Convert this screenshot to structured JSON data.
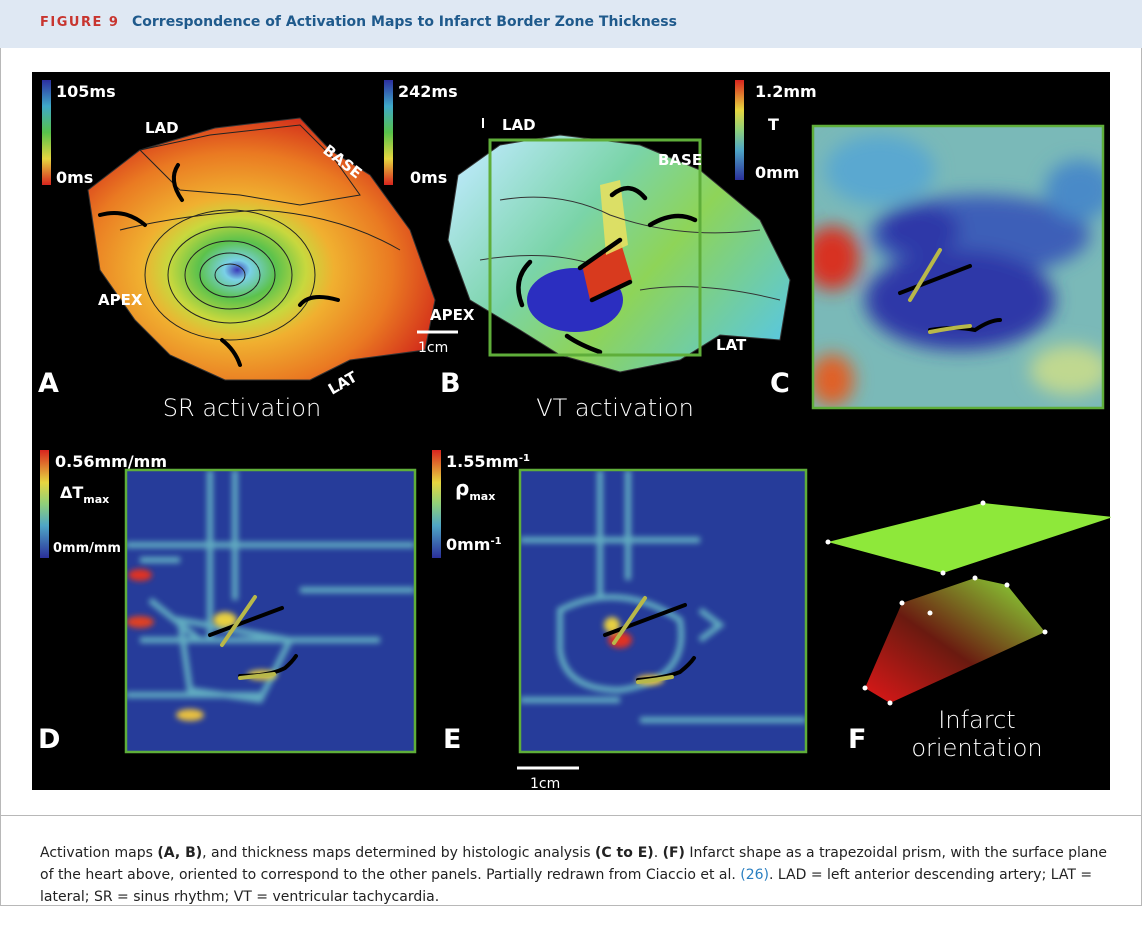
{
  "header": {
    "label": "FIGURE 9",
    "title": "Correspondence of Activation Maps to Infarct Border Zone Thickness"
  },
  "panels": {
    "a": {
      "scale_max": "105ms",
      "scale_min": "0ms",
      "lad": "LAD",
      "base": "BASE",
      "apex": "APEX",
      "lat": "LAT",
      "letter": "A",
      "caption": "SR activation"
    },
    "b": {
      "scale_max": "242ms",
      "scale_min": "0ms",
      "lad": "LAD",
      "base": "BASE",
      "apex": "APEX",
      "lat": "LAT",
      "scale_bar": "1cm",
      "letter": "B",
      "caption": "VT activation"
    },
    "c": {
      "scale_max": "1.2mm",
      "symbol": "T",
      "scale_min": "0mm",
      "letter": "C"
    },
    "d": {
      "scale_max": "0.56mm/mm",
      "symbol": "ΔT",
      "symbol_sub": "max",
      "scale_min": "0mm/mm",
      "letter": "D"
    },
    "e": {
      "scale_max": "1.55mm",
      "scale_max_sup": "-1",
      "symbol": "ρ",
      "symbol_sub": "max",
      "scale_min": "0mm",
      "scale_min_sup": "-1",
      "scale_bar": "1cm",
      "letter": "E"
    },
    "f": {
      "letter": "F",
      "caption_line1": "Infarct",
      "caption_line2": "orientation"
    }
  },
  "caption": [
    "Activation maps ",
    "(A, B)",
    ", and thickness maps determined by histologic analysis ",
    "(C to E)",
    ". ",
    "(F)",
    " Infarct shape as a trapezoidal prism, with the surface plane of the heart above, oriented to correspond to the other panels. Partially redrawn from Ciaccio et al. ",
    "(26)",
    ". LAD = left anterior descending artery; LAT = lateral; SR = sinus rhythm; VT = ventricular tachycardia."
  ]
}
